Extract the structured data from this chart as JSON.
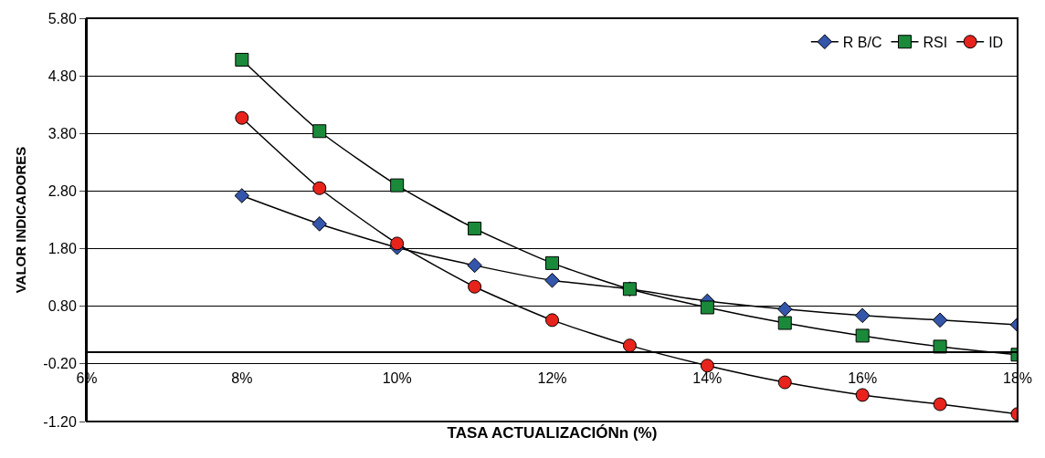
{
  "chart_data": {
    "type": "line",
    "xlabel": "TASA ACTUALIZACIÓNn (%)",
    "ylabel": "VALOR INDICADORES",
    "x": [
      8,
      9,
      10,
      11,
      12,
      13,
      14,
      15,
      16,
      17,
      18
    ],
    "series": [
      {
        "name": "R B/C",
        "color": "#3355aa",
        "marker": "diamond",
        "values": [
          2.72,
          2.23,
          1.82,
          1.51,
          1.25,
          1.1,
          0.89,
          0.75,
          0.64,
          0.56,
          0.48
        ]
      },
      {
        "name": "RSI",
        "color": "#1a8a3a",
        "marker": "square",
        "values": [
          5.08,
          3.84,
          2.9,
          2.15,
          1.55,
          1.1,
          0.78,
          0.51,
          0.29,
          0.1,
          -0.04
        ]
      },
      {
        "name": "ID",
        "color": "#e8231c",
        "marker": "circle",
        "values": [
          4.07,
          2.85,
          1.89,
          1.14,
          0.56,
          0.12,
          -0.23,
          -0.52,
          -0.74,
          -0.9,
          -1.07
        ]
      }
    ],
    "xlim": [
      6,
      18
    ],
    "xticks": [
      {
        "value": 6,
        "label": "6%"
      },
      {
        "value": 8,
        "label": "8%"
      },
      {
        "value": 10,
        "label": "10%"
      },
      {
        "value": 12,
        "label": "12%"
      },
      {
        "value": 14,
        "label": "14%"
      },
      {
        "value": 16,
        "label": "16%"
      },
      {
        "value": 18,
        "label": "18%"
      }
    ],
    "ylim": [
      -1.2,
      5.8
    ],
    "yticks": [
      {
        "value": -1.2,
        "label": "-1.20"
      },
      {
        "value": -0.2,
        "label": "-0.20"
      },
      {
        "value": 0.8,
        "label": "0.80"
      },
      {
        "value": 1.8,
        "label": "1.80"
      },
      {
        "value": 2.8,
        "label": "2.80"
      },
      {
        "value": 3.8,
        "label": "3.80"
      },
      {
        "value": 4.8,
        "label": "4.80"
      },
      {
        "value": 5.8,
        "label": "5.80"
      }
    ],
    "grid": "y",
    "legend": "top right",
    "line_style": "solid"
  }
}
